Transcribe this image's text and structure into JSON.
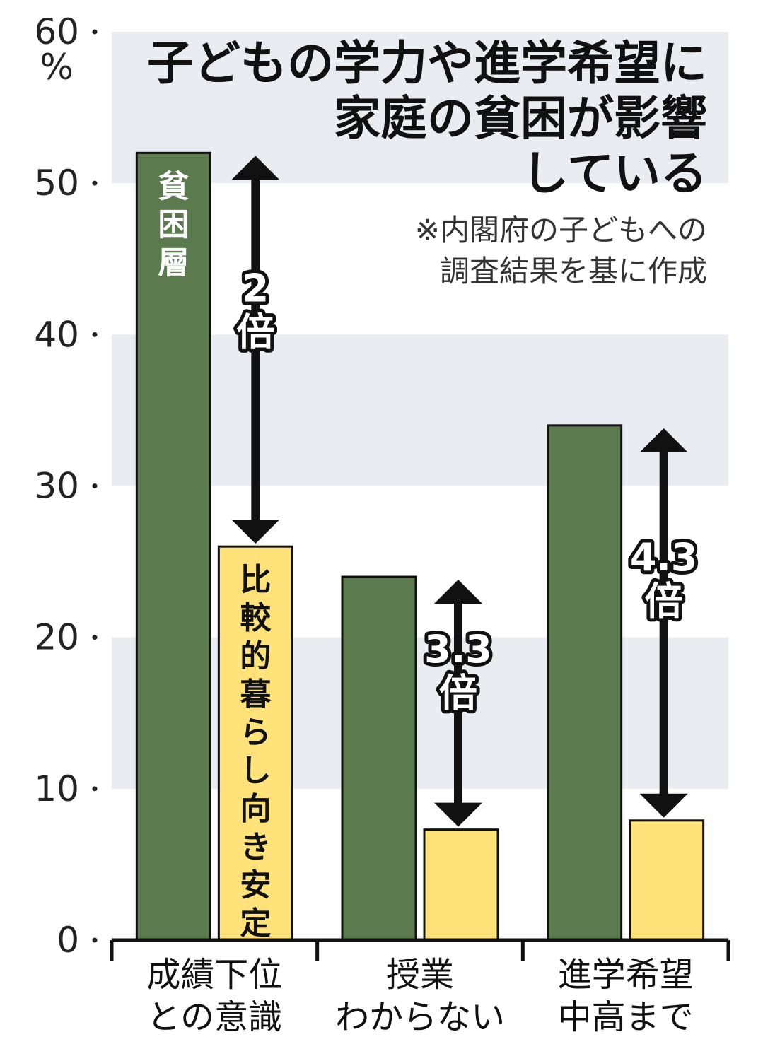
{
  "chart_data": {
    "type": "bar",
    "title": [
      "子どもの学力や進学希望に",
      "家庭の貧困が影響",
      "している"
    ],
    "note": [
      "※内閣府の子どもへの",
      "調査結果を基に作成"
    ],
    "y_unit": "%",
    "ylim": [
      0,
      60
    ],
    "yticks": [
      "0",
      "10",
      "20",
      "30",
      "40",
      "50",
      "60"
    ],
    "categories": [
      [
        "成績下位",
        "との意識"
      ],
      [
        "授業",
        "わからない"
      ],
      [
        "進学希望",
        "中高まで"
      ]
    ],
    "series": [
      {
        "name": "貧困層",
        "values": [
          52,
          24,
          34
        ],
        "color": "#5b7b4e"
      },
      {
        "name": "比較的暮らし向き安定",
        "values": [
          26,
          7.3,
          7.9
        ],
        "color": "#ffe27a"
      }
    ],
    "ratios": [
      {
        "category_index": 0,
        "label": [
          "2",
          "倍"
        ]
      },
      {
        "category_index": 1,
        "label": [
          "3.3",
          "倍"
        ]
      },
      {
        "category_index": 2,
        "label": [
          "4.3",
          "倍"
        ]
      }
    ],
    "grid": "alternating bands"
  }
}
